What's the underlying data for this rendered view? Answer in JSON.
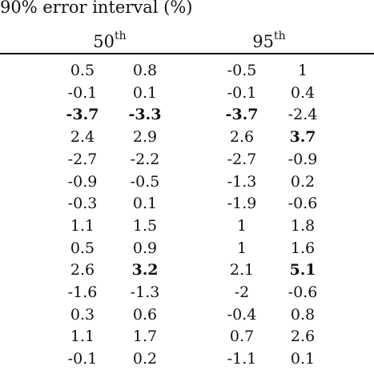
{
  "header": {
    "title": "90% error interval (%)",
    "groups": [
      {
        "base": "50",
        "sup": "th"
      },
      {
        "base": "95",
        "sup": "th"
      }
    ]
  },
  "rows": [
    {
      "cells": [
        "0.5",
        "0.8",
        "-0.5",
        "1"
      ],
      "bold": [
        false,
        false,
        false,
        false
      ]
    },
    {
      "cells": [
        "-0.1",
        "0.1",
        "-0.1",
        "0.4"
      ],
      "bold": [
        false,
        false,
        false,
        false
      ]
    },
    {
      "cells": [
        "-3.7",
        "-3.3",
        "-3.7",
        "-2.4"
      ],
      "bold": [
        true,
        true,
        true,
        false
      ]
    },
    {
      "cells": [
        "2.4",
        "2.9",
        "2.6",
        "3.7"
      ],
      "bold": [
        false,
        false,
        false,
        true
      ]
    },
    {
      "cells": [
        "-2.7",
        "-2.2",
        "-2.7",
        "-0.9"
      ],
      "bold": [
        false,
        false,
        false,
        false
      ]
    },
    {
      "cells": [
        "-0.9",
        "-0.5",
        "-1.3",
        "0.2"
      ],
      "bold": [
        false,
        false,
        false,
        false
      ]
    },
    {
      "cells": [
        "-0.3",
        "0.1",
        "-1.9",
        "-0.6"
      ],
      "bold": [
        false,
        false,
        false,
        false
      ]
    },
    {
      "cells": [
        "1.1",
        "1.5",
        "1",
        "1.8"
      ],
      "bold": [
        false,
        false,
        false,
        false
      ]
    },
    {
      "cells": [
        "0.5",
        "0.9",
        "1",
        "1.6"
      ],
      "bold": [
        false,
        false,
        false,
        false
      ]
    },
    {
      "cells": [
        "2.6",
        "3.2",
        "2.1",
        "5.1"
      ],
      "bold": [
        false,
        true,
        false,
        true
      ]
    },
    {
      "cells": [
        "-1.6",
        "-1.3",
        "-2",
        "-0.6"
      ],
      "bold": [
        false,
        false,
        false,
        false
      ]
    },
    {
      "cells": [
        "0.3",
        "0.6",
        "-0.4",
        "0.8"
      ],
      "bold": [
        false,
        false,
        false,
        false
      ]
    },
    {
      "cells": [
        "1.1",
        "1.7",
        "0.7",
        "2.6"
      ],
      "bold": [
        false,
        false,
        false,
        false
      ]
    },
    {
      "cells": [
        "-0.1",
        "0.2",
        "-1.1",
        "0.1"
      ],
      "bold": [
        false,
        false,
        false,
        false
      ]
    }
  ]
}
